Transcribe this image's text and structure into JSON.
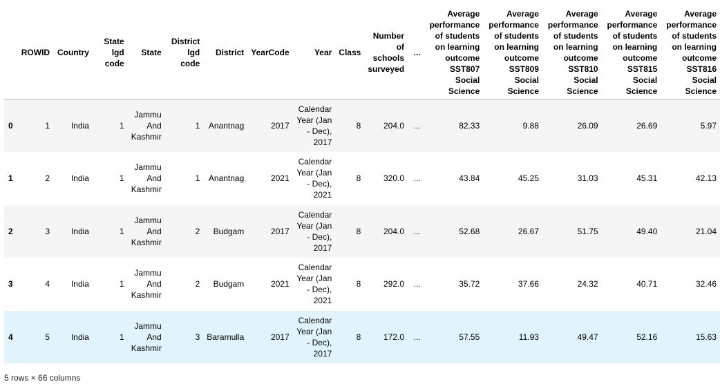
{
  "table": {
    "index_header": "",
    "columns": [
      "ROWID",
      "Country",
      "State lgd code",
      "State",
      "District lgd code",
      "District",
      "YearCode",
      "Year",
      "Class",
      "Number of schools surveyed",
      "...",
      "Average performance of students on learning outcome SST807 Social Science",
      "Average performance of students on learning outcome SST809 Social Science",
      "Average performance of students on learning outcome SST810 Social Science",
      "Average performance of students on learning outcome SST815 Social Science",
      "Average performance of students on learning outcome SST816 Social Science"
    ],
    "rows": [
      {
        "index": "0",
        "cells": [
          "1",
          "India",
          "1",
          "Jammu And Kashmir",
          "1",
          "Anantnag",
          "2017",
          "Calendar Year (Jan - Dec), 2017",
          "8",
          "204.0",
          "...",
          "82.33",
          "9.88",
          "26.09",
          "26.69",
          "5.97"
        ]
      },
      {
        "index": "1",
        "cells": [
          "2",
          "India",
          "1",
          "Jammu And Kashmir",
          "1",
          "Anantnag",
          "2021",
          "Calendar Year (Jan - Dec), 2021",
          "8",
          "320.0",
          "...",
          "43.84",
          "45.25",
          "31.03",
          "45.31",
          "42.13"
        ]
      },
      {
        "index": "2",
        "cells": [
          "3",
          "India",
          "1",
          "Jammu And Kashmir",
          "2",
          "Budgam",
          "2017",
          "Calendar Year (Jan - Dec), 2017",
          "8",
          "204.0",
          "...",
          "52.68",
          "26.67",
          "51.75",
          "49.40",
          "21.04"
        ]
      },
      {
        "index": "3",
        "cells": [
          "4",
          "India",
          "1",
          "Jammu And Kashmir",
          "2",
          "Budgam",
          "2021",
          "Calendar Year (Jan - Dec), 2021",
          "8",
          "292.0",
          "...",
          "35.72",
          "37.66",
          "24.32",
          "40.71",
          "32.46"
        ]
      },
      {
        "index": "4",
        "cells": [
          "5",
          "India",
          "1",
          "Jammu And Kashmir",
          "3",
          "Baramulla",
          "2017",
          "Calendar Year (Jan - Dec), 2017",
          "8",
          "172.0",
          "...",
          "57.55",
          "11.93",
          "49.47",
          "52.16",
          "15.63"
        ]
      }
    ],
    "highlighted_row": 4
  },
  "footer": {
    "shape_text": "5 rows × 66 columns"
  },
  "colors": {
    "stripe": "#f5f5f5",
    "hover": "#e1f3fc",
    "border": "#bdbdbd"
  }
}
